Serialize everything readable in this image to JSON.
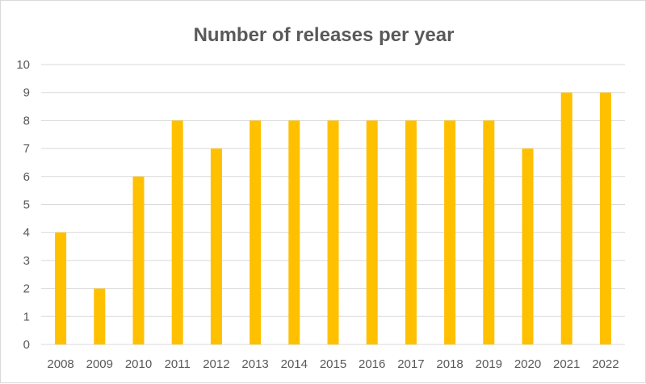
{
  "chart_data": {
    "type": "bar",
    "title": "Number of releases per year",
    "xlabel": "",
    "ylabel": "",
    "categories": [
      "2008",
      "2009",
      "2010",
      "2011",
      "2012",
      "2013",
      "2014",
      "2015",
      "2016",
      "2017",
      "2018",
      "2019",
      "2020",
      "2021",
      "2022"
    ],
    "values": [
      4,
      2,
      6,
      8,
      7,
      8,
      8,
      8,
      8,
      8,
      8,
      8,
      7,
      9,
      9
    ],
    "ylim": [
      0,
      10
    ],
    "yticks": [
      "0",
      "1",
      "2",
      "3",
      "4",
      "5",
      "6",
      "7",
      "8",
      "9",
      "10"
    ],
    "grid": true,
    "legend": "none",
    "bar_color": "#ffc000",
    "grid_color": "#d9d9d9",
    "text_color": "#595959"
  }
}
